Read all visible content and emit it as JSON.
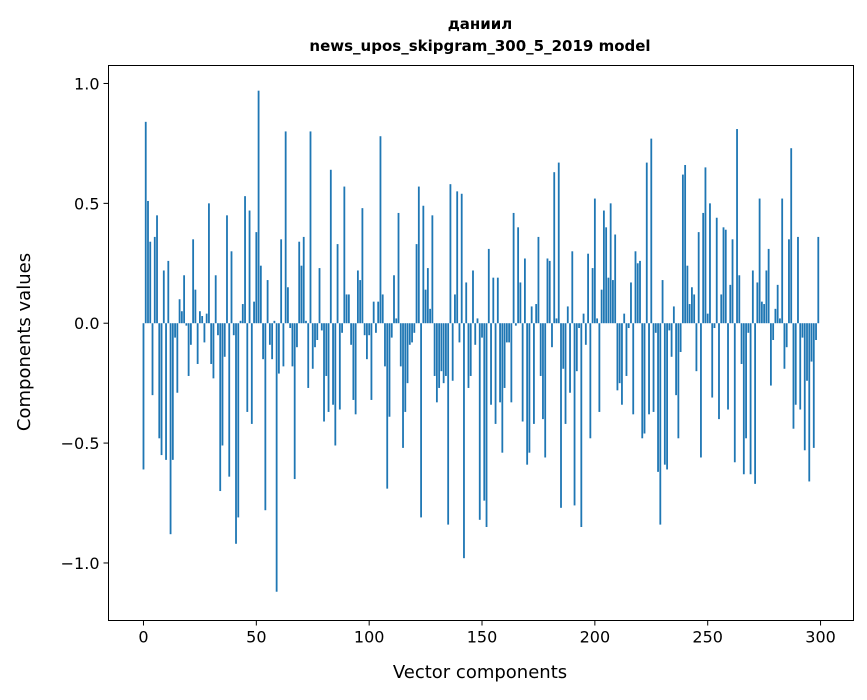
{
  "chart_data": {
    "type": "bar",
    "title": "даниил",
    "subtitle": "news_upos_skipgram_300_5_2019 model",
    "xlabel": "Vector components",
    "ylabel": "Components values",
    "xlim": [
      -15.5,
      314.6
    ],
    "ylim": [
      -1.24,
      1.075
    ],
    "xticks": [
      0,
      50,
      100,
      150,
      200,
      250,
      300
    ],
    "xtick_labels": [
      "0",
      "50",
      "100",
      "150",
      "200",
      "250",
      "300"
    ],
    "yticks": [
      -1.0,
      -0.5,
      0.0,
      0.5,
      1.0
    ],
    "ytick_labels": [
      "−1.0",
      "−0.5",
      "0.0",
      "0.5",
      "1.0"
    ],
    "grid": false,
    "bar_color": "#1f77b4",
    "values": [
      -0.61,
      0.84,
      0.51,
      0.34,
      -0.3,
      0.36,
      0.45,
      -0.48,
      -0.55,
      0.22,
      -0.57,
      0.26,
      -0.88,
      -0.57,
      -0.06,
      -0.29,
      0.1,
      0.05,
      0.2,
      -0.01,
      -0.22,
      -0.09,
      0.35,
      0.14,
      -0.17,
      0.05,
      0.03,
      -0.08,
      0.04,
      0.5,
      -0.17,
      -0.23,
      0.2,
      -0.05,
      -0.7,
      -0.51,
      -0.14,
      0.45,
      -0.64,
      0.3,
      -0.05,
      -0.92,
      -0.81,
      0.01,
      0.08,
      0.53,
      -0.37,
      0.47,
      -0.42,
      0.09,
      0.38,
      0.97,
      0.24,
      -0.15,
      -0.78,
      0.18,
      -0.09,
      -0.15,
      0.01,
      -1.12,
      -0.21,
      0.35,
      -0.18,
      0.8,
      0.15,
      -0.02,
      -0.18,
      -0.65,
      -0.1,
      0.34,
      0.24,
      0.36,
      0.01,
      -0.27,
      0.8,
      -0.19,
      -0.1,
      -0.07,
      0.23,
      -0.03,
      -0.41,
      -0.22,
      -0.37,
      0.64,
      -0.34,
      -0.51,
      0.33,
      -0.36,
      -0.04,
      0.57,
      0.12,
      0.12,
      -0.09,
      -0.32,
      -0.38,
      0.22,
      0.18,
      0.48,
      -0.05,
      -0.15,
      -0.05,
      -0.32,
      0.09,
      -0.04,
      0.09,
      0.78,
      0.12,
      -0.18,
      -0.69,
      -0.39,
      -0.06,
      0.2,
      0.02,
      0.46,
      -0.18,
      -0.52,
      -0.37,
      -0.25,
      -0.09,
      -0.08,
      -0.04,
      0.33,
      0.57,
      -0.81,
      0.49,
      0.14,
      0.23,
      0.06,
      0.45,
      -0.22,
      -0.33,
      -0.27,
      -0.2,
      -0.25,
      -0.22,
      -0.84,
      0.58,
      -0.24,
      0.12,
      0.55,
      -0.08,
      0.54,
      -0.98,
      0.17,
      -0.27,
      -0.22,
      0.22,
      -0.09,
      0.02,
      -0.82,
      -0.06,
      -0.74,
      -0.85,
      0.31,
      -0.34,
      0.19,
      -0.42,
      0.19,
      -0.33,
      -0.54,
      -0.27,
      -0.08,
      -0.08,
      -0.33,
      0.46,
      -0.01,
      0.4,
      0.17,
      -0.41,
      0.27,
      -0.59,
      -0.54,
      0.07,
      -0.42,
      0.08,
      0.36,
      -0.22,
      -0.4,
      -0.56,
      0.27,
      0.26,
      -0.1,
      0.63,
      0.02,
      0.67,
      -0.77,
      -0.19,
      -0.42,
      0.07,
      -0.29,
      0.3,
      -0.76,
      -0.2,
      -0.02,
      -0.85,
      0.04,
      -0.09,
      0.29,
      -0.48,
      0.23,
      0.52,
      0.02,
      -0.37,
      0.14,
      0.47,
      0.4,
      0.19,
      0.5,
      0.18,
      0.37,
      -0.28,
      -0.25,
      -0.34,
      0.04,
      -0.22,
      -0.02,
      0.17,
      -0.38,
      0.3,
      0.25,
      0.26,
      -0.48,
      -0.46,
      0.67,
      -0.38,
      0.77,
      -0.37,
      -0.04,
      -0.62,
      -0.84,
      0.18,
      -0.59,
      -0.61,
      -0.03,
      -0.14,
      0.07,
      -0.3,
      -0.48,
      -0.12,
      0.62,
      0.66,
      0.24,
      0.08,
      0.15,
      0.12,
      -0.2,
      0.38,
      -0.56,
      0.46,
      0.65,
      0.04,
      0.5,
      -0.31,
      -0.02,
      0.44,
      -0.4,
      0.12,
      0.4,
      0.39,
      -0.36,
      0.16,
      0.35,
      -0.58,
      0.81,
      0.2,
      -0.17,
      -0.63,
      -0.48,
      -0.04,
      -0.63,
      0.22,
      -0.67,
      0.17,
      0.52,
      0.09,
      0.08,
      0.22,
      0.31,
      -0.26,
      -0.07,
      0.06,
      0.16,
      0.02,
      0.52,
      -0.19,
      -0.1,
      0.35,
      0.73,
      -0.44,
      -0.34,
      0.36,
      -0.36,
      -0.06,
      -0.53,
      -0.24,
      -0.66,
      -0.16,
      -0.52,
      -0.07,
      0.36
    ]
  }
}
